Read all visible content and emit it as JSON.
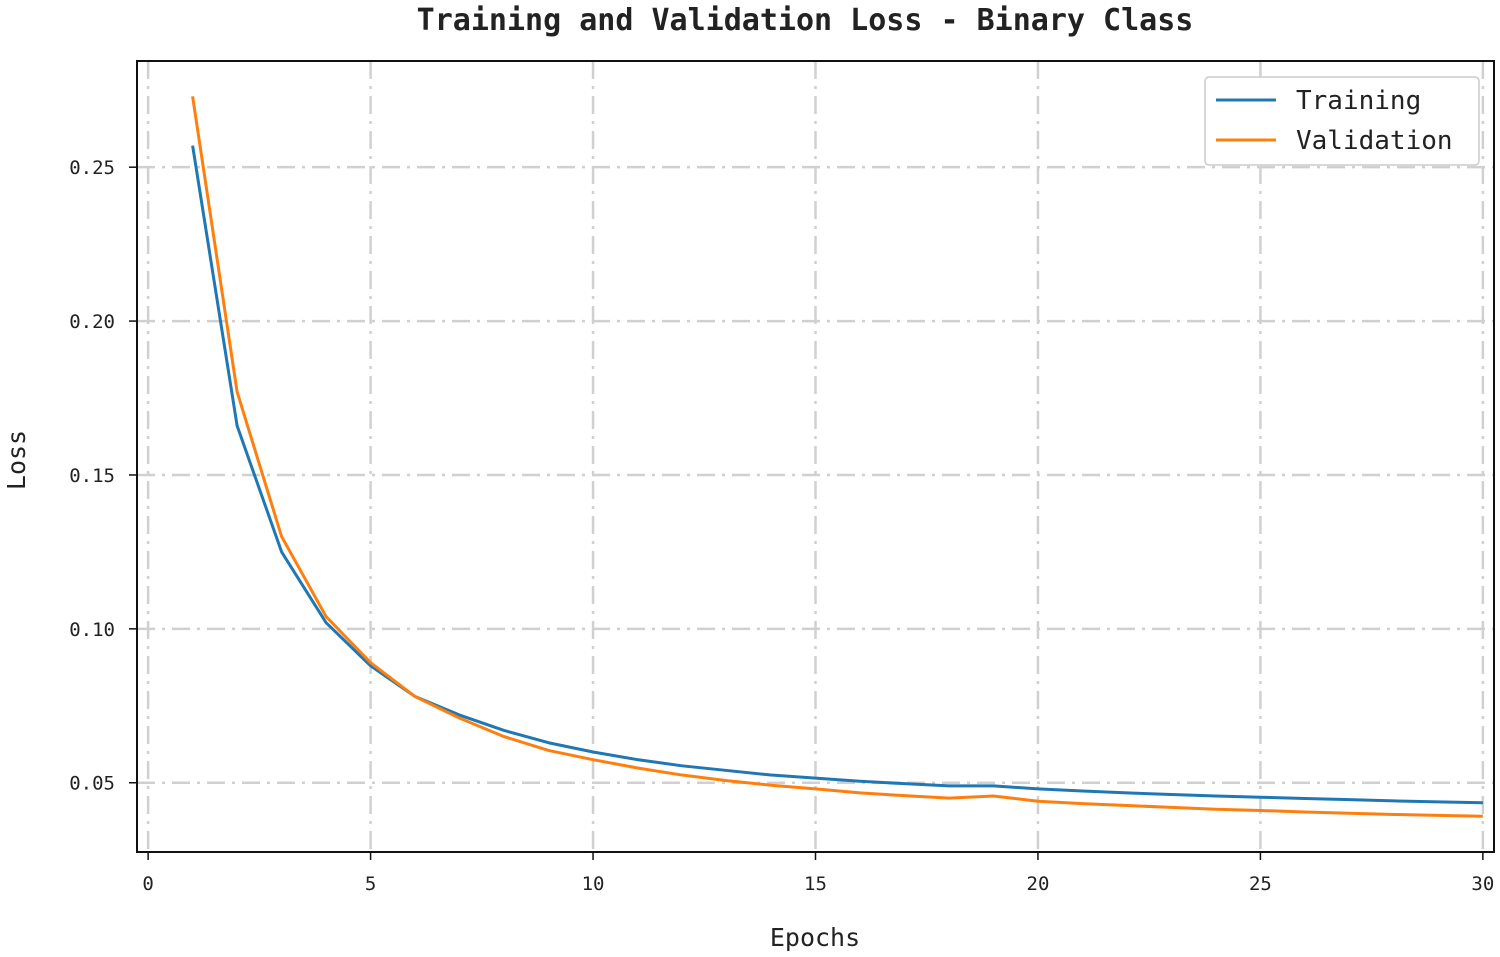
{
  "chart_data": {
    "type": "line",
    "title": "Training and Validation Loss - Binary Class",
    "xlabel": "Epochs",
    "ylabel": "Loss",
    "xlim": [
      -0.25,
      30.25
    ],
    "ylim": [
      0.0275,
      0.2845
    ],
    "xticks": [
      0,
      5,
      10,
      15,
      20,
      25,
      30
    ],
    "xtick_labels": [
      "0",
      "5",
      "10",
      "15",
      "20",
      "25",
      "30"
    ],
    "yticks": [
      0.05,
      0.1,
      0.15,
      0.2,
      0.25
    ],
    "ytick_labels": [
      "0.05",
      "0.10",
      "0.15",
      "0.20",
      "0.25"
    ],
    "grid": true,
    "legend_position": "top-right",
    "x": [
      1,
      2,
      3,
      4,
      5,
      6,
      7,
      8,
      9,
      10,
      11,
      12,
      13,
      14,
      15,
      16,
      17,
      18,
      19,
      20,
      21,
      22,
      23,
      24,
      25,
      26,
      27,
      28,
      29,
      30
    ],
    "series": [
      {
        "name": "Training",
        "color": "#1f77b4",
        "values": [
          0.257,
          0.166,
          0.125,
          0.102,
          0.088,
          0.078,
          0.072,
          0.067,
          0.063,
          0.06,
          0.0575,
          0.0555,
          0.054,
          0.0525,
          0.0515,
          0.0505,
          0.0497,
          0.049,
          0.049,
          0.048,
          0.0473,
          0.0467,
          0.0462,
          0.0457,
          0.0453,
          0.0449,
          0.0445,
          0.0441,
          0.0438,
          0.0435
        ]
      },
      {
        "name": "Validation",
        "color": "#ff7f0e",
        "values": [
          0.273,
          0.177,
          0.13,
          0.104,
          0.089,
          0.078,
          0.071,
          0.065,
          0.0605,
          0.0575,
          0.0548,
          0.0525,
          0.0507,
          0.0492,
          0.048,
          0.0467,
          0.0458,
          0.045,
          0.0457,
          0.044,
          0.0432,
          0.0426,
          0.042,
          0.0414,
          0.041,
          0.0405,
          0.0401,
          0.0397,
          0.0394,
          0.0391
        ]
      }
    ]
  }
}
